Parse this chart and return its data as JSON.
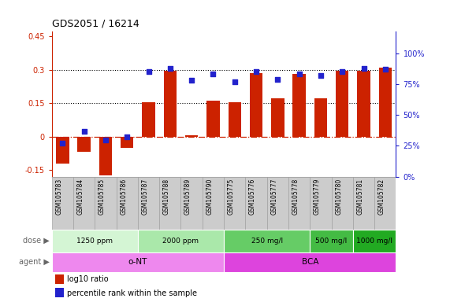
{
  "title": "GDS2051 / 16214",
  "samples": [
    "GSM105783",
    "GSM105784",
    "GSM105785",
    "GSM105786",
    "GSM105787",
    "GSM105788",
    "GSM105789",
    "GSM105790",
    "GSM105775",
    "GSM105776",
    "GSM105777",
    "GSM105778",
    "GSM105779",
    "GSM105780",
    "GSM105781",
    "GSM105782"
  ],
  "log10_ratio": [
    -0.12,
    -0.07,
    -0.175,
    -0.05,
    0.155,
    0.295,
    0.005,
    0.16,
    0.155,
    0.285,
    0.17,
    0.28,
    0.17,
    0.295,
    0.295,
    0.31
  ],
  "percentile_rank": [
    0.27,
    0.37,
    0.3,
    0.32,
    0.85,
    0.88,
    0.78,
    0.83,
    0.77,
    0.85,
    0.79,
    0.83,
    0.82,
    0.85,
    0.88,
    0.87
  ],
  "ylim_left": [
    -0.18,
    0.47
  ],
  "ylim_right": [
    0.0,
    1.175
  ],
  "yticks_left": [
    -0.15,
    0.0,
    0.15,
    0.3,
    0.45
  ],
  "ytick_labels_left": [
    "-0.15",
    "0",
    "0.15",
    "0.3",
    "0.45"
  ],
  "yticks_right": [
    0.0,
    0.25,
    0.5,
    0.75,
    1.0
  ],
  "ytick_labels_right": [
    "0%",
    "25%",
    "50%",
    "75%",
    "100%"
  ],
  "hlines": [
    0.15,
    0.3
  ],
  "bar_color": "#cc2200",
  "scatter_color": "#2222cc",
  "zero_line_color": "#cc2200",
  "dose_groups": [
    {
      "label": "1250 ppm",
      "start": 0,
      "end": 4,
      "color": "#d4f5d4"
    },
    {
      "label": "2000 ppm",
      "start": 4,
      "end": 8,
      "color": "#aae8aa"
    },
    {
      "label": "250 mg/l",
      "start": 8,
      "end": 12,
      "color": "#66cc66"
    },
    {
      "label": "500 mg/l",
      "start": 12,
      "end": 14,
      "color": "#44bb44"
    },
    {
      "label": "1000 mg/l",
      "start": 14,
      "end": 16,
      "color": "#22aa22"
    }
  ],
  "agent_groups": [
    {
      "label": "o-NT",
      "start": 0,
      "end": 8,
      "color": "#ee88ee"
    },
    {
      "label": "BCA",
      "start": 8,
      "end": 16,
      "color": "#dd44dd"
    }
  ],
  "dose_label": "dose",
  "agent_label": "agent",
  "legend_log10": "log10 ratio",
  "legend_pct": "percentile rank within the sample",
  "legend_bar_color": "#cc2200",
  "legend_scatter_color": "#2222cc",
  "sample_box_color": "#cccccc",
  "sample_box_edge": "#999999"
}
